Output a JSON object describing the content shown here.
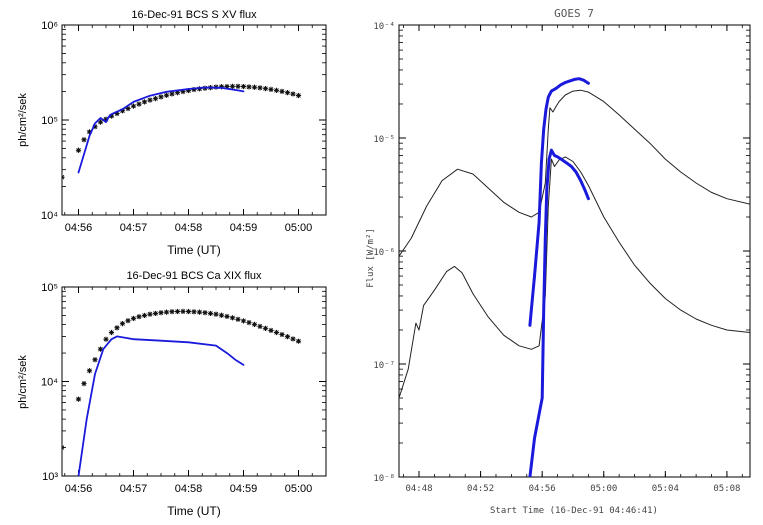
{
  "chart_data": [
    {
      "id": "bcs_s",
      "type": "scatter",
      "title": "16-Dec-91   BCS S XV flux",
      "xlabel": "Time (UT)",
      "ylabel": "ph/cm²/sek",
      "yscale": "log",
      "xlim": [
        55.7,
        60.5
      ],
      "ylim": [
        10000,
        1000000
      ],
      "xticks": [
        56,
        57,
        58,
        59,
        60
      ],
      "xtick_labels": [
        "04:56",
        "04:57",
        "04:58",
        "04:59",
        "05:00"
      ],
      "ytick_exponents": [
        4,
        5,
        6
      ],
      "series": [
        {
          "name": "BCS S XV measured",
          "style": "asterisk",
          "color": "#111111",
          "x": [
            55.7,
            56.0,
            56.1,
            56.2,
            56.3,
            56.4,
            56.5,
            56.6,
            56.7,
            56.8,
            56.9,
            57.0,
            57.1,
            57.2,
            57.3,
            57.4,
            57.5,
            57.6,
            57.7,
            57.8,
            57.9,
            58.0,
            58.1,
            58.2,
            58.3,
            58.4,
            58.5,
            58.6,
            58.7,
            58.8,
            58.9,
            59.0,
            59.1,
            59.2,
            59.3,
            59.4,
            59.5,
            59.6,
            59.7,
            59.8,
            59.9,
            60.0
          ],
          "y": [
            25000,
            48000,
            62000,
            75000,
            85000,
            95000,
            102000,
            110000,
            117000,
            125000,
            132000,
            140000,
            147000,
            155000,
            162000,
            168000,
            175000,
            182000,
            188000,
            194000,
            199000,
            204000,
            209000,
            213000,
            216000,
            219000,
            222000,
            224000,
            225000,
            226000,
            226000,
            225000,
            223000,
            221000,
            218000,
            214000,
            210000,
            205000,
            200000,
            194000,
            188000,
            181000
          ]
        },
        {
          "name": "model",
          "style": "line",
          "color": "#1a1adc",
          "x": [
            56.0,
            56.2,
            56.3,
            56.4,
            56.5,
            56.55,
            56.6,
            56.8,
            57.0,
            57.3,
            57.6,
            58.0,
            58.3,
            58.6,
            58.9,
            59.0
          ],
          "y": [
            28000,
            68000,
            92000,
            105000,
            95000,
            108000,
            115000,
            130000,
            155000,
            180000,
            198000,
            212000,
            220000,
            218000,
            205000,
            200000
          ]
        }
      ]
    },
    {
      "id": "bcs_ca",
      "type": "scatter",
      "title": "16-Dec-91   BCS Ca XIX flux",
      "xlabel": "Time (UT)",
      "ylabel": "ph/cm²/sek",
      "yscale": "log",
      "xlim": [
        55.7,
        60.5
      ],
      "ylim": [
        1000,
        100000
      ],
      "xticks": [
        56,
        57,
        58,
        59,
        60
      ],
      "xtick_labels": [
        "04:56",
        "04:57",
        "04:58",
        "04:59",
        "05:00"
      ],
      "ytick_exponents": [
        3,
        4,
        5
      ],
      "series": [
        {
          "name": "BCS Ca XIX measured",
          "style": "asterisk",
          "color": "#111111",
          "x": [
            55.7,
            56.0,
            56.1,
            56.2,
            56.3,
            56.4,
            56.5,
            56.6,
            56.7,
            56.8,
            56.9,
            57.0,
            57.1,
            57.2,
            57.3,
            57.4,
            57.5,
            57.6,
            57.7,
            57.8,
            57.9,
            58.0,
            58.1,
            58.2,
            58.3,
            58.4,
            58.5,
            58.6,
            58.7,
            58.8,
            58.9,
            59.0,
            59.1,
            59.2,
            59.3,
            59.4,
            59.5,
            59.6,
            59.7,
            59.8,
            59.9,
            60.0
          ],
          "y": [
            2000,
            6500,
            9500,
            13000,
            17000,
            22000,
            28000,
            33000,
            37000,
            41000,
            44000,
            46500,
            48500,
            50000,
            51500,
            52500,
            53500,
            54200,
            54800,
            55000,
            55200,
            55000,
            54700,
            54200,
            53500,
            52500,
            51500,
            50200,
            48800,
            47200,
            45500,
            43800,
            42000,
            40200,
            38300,
            36500,
            34700,
            33000,
            31400,
            29800,
            28200,
            26700
          ]
        },
        {
          "name": "model",
          "style": "line",
          "color": "#1a1adc",
          "x": [
            56.0,
            56.15,
            56.3,
            56.45,
            56.6,
            56.7,
            57.0,
            57.5,
            58.0,
            58.5,
            58.7,
            58.85,
            59.0
          ],
          "y": [
            1000,
            4000,
            12000,
            22000,
            28000,
            30000,
            28000,
            27000,
            26000,
            24000,
            20000,
            17000,
            15000
          ]
        }
      ]
    },
    {
      "id": "goes",
      "type": "line",
      "title": "GOES 7",
      "xlabel": "Start Time (16-Dec-91 04:46:41)",
      "ylabel": "Flux [W/m²]",
      "yscale": "log",
      "xlim": [
        46.7,
        69.5
      ],
      "ylim": [
        1e-08,
        0.0001
      ],
      "xticks": [
        48,
        52,
        56,
        60,
        64,
        68
      ],
      "xtick_labels": [
        "04:48",
        "04:52",
        "04:56",
        "05:00",
        "05:04",
        "05:08"
      ],
      "ytick_exponents": [
        -8,
        -7,
        -6,
        -5,
        -4
      ],
      "series": [
        {
          "name": "GOES long channel",
          "style": "thin",
          "color": "#222222",
          "x": [
            46.7,
            47.5,
            48.5,
            49.5,
            50.5,
            51.5,
            52.5,
            53.5,
            54.5,
            55.3,
            55.8,
            56.2,
            56.4,
            56.5,
            56.7,
            56.9,
            57.1,
            57.5,
            58.0,
            58.5,
            59.0,
            60.0,
            61.0,
            62.0,
            63.0,
            64.0,
            65.0,
            66.0,
            67.0,
            68.0,
            69.5
          ],
          "y": [
            9e-07,
            1.3e-06,
            2.5e-06,
            4.2e-06,
            5.3e-06,
            4.8e-06,
            3.6e-06,
            2.7e-06,
            2.2e-06,
            2e-06,
            2.2e-06,
            4e-06,
            1.2e-05,
            1.85e-05,
            1.7e-05,
            1.9e-05,
            2.1e-05,
            2.4e-05,
            2.6e-05,
            2.65e-05,
            2.55e-05,
            2.1e-05,
            1.6e-05,
            1.2e-05,
            9e-06,
            6.5e-06,
            5e-06,
            4e-06,
            3.3e-06,
            2.9e-06,
            2.6e-06
          ]
        },
        {
          "name": "GOES short channel",
          "style": "thin",
          "color": "#222222",
          "x": [
            46.7,
            47.3,
            47.8,
            48.0,
            48.3,
            49.0,
            49.8,
            50.3,
            50.8,
            51.5,
            52.5,
            53.5,
            54.5,
            55.3,
            55.8,
            56.2,
            56.4,
            56.6,
            56.8,
            57.1,
            57.5,
            58.0,
            58.5,
            59.0,
            60.0,
            61.0,
            62.0,
            63.0,
            64.0,
            65.0,
            66.0,
            67.0,
            68.0,
            69.5
          ],
          "y": [
            5e-08,
            9e-08,
            2.3e-07,
            2e-07,
            3.3e-07,
            4.5e-07,
            6.6e-07,
            7.3e-07,
            6.4e-07,
            4.2e-07,
            2.6e-07,
            1.8e-07,
            1.45e-07,
            1.35e-07,
            1.45e-07,
            4e-07,
            2.5e-06,
            6.5e-06,
            5.6e-06,
            6.4e-06,
            6.8e-06,
            6.2e-06,
            5e-06,
            3.8e-06,
            2e-06,
            1.2e-06,
            7.5e-07,
            5.2e-07,
            3.8e-07,
            3e-07,
            2.5e-07,
            2.2e-07,
            2e-07,
            1.9e-07
          ]
        },
        {
          "name": "model long",
          "style": "thick",
          "color": "#1a1adc",
          "x": [
            55.2,
            55.5,
            55.8,
            55.95,
            56.1,
            56.25,
            56.4,
            56.6,
            56.9,
            57.2,
            57.5,
            57.8,
            58.1,
            58.4,
            58.7,
            59.0
          ],
          "y": [
            2.2e-07,
            6e-07,
            1.8e-06,
            6e-06,
            1.2e-05,
            1.8e-05,
            2.3e-05,
            2.6e-05,
            2.75e-05,
            2.95e-05,
            3.1e-05,
            3.2e-05,
            3.3e-05,
            3.35e-05,
            3.25e-05,
            3.05e-05
          ]
        },
        {
          "name": "model short",
          "style": "thick",
          "color": "#1a1adc",
          "x": [
            55.2,
            55.5,
            55.8,
            56.0,
            56.1,
            56.2,
            56.3,
            56.45,
            56.6,
            56.8,
            57.0,
            57.3,
            57.6,
            57.9,
            58.2,
            58.5,
            58.8,
            59.0
          ],
          "y": [
            1e-08,
            2.2e-08,
            3.6e-08,
            5e-08,
            3e-07,
            1.3e-06,
            3.5e-06,
            6.5e-06,
            7.8e-06,
            7e-06,
            6.8e-06,
            6.4e-06,
            6e-06,
            5.6e-06,
            5e-06,
            4.2e-06,
            3.4e-06,
            2.9e-06
          ]
        }
      ]
    }
  ]
}
